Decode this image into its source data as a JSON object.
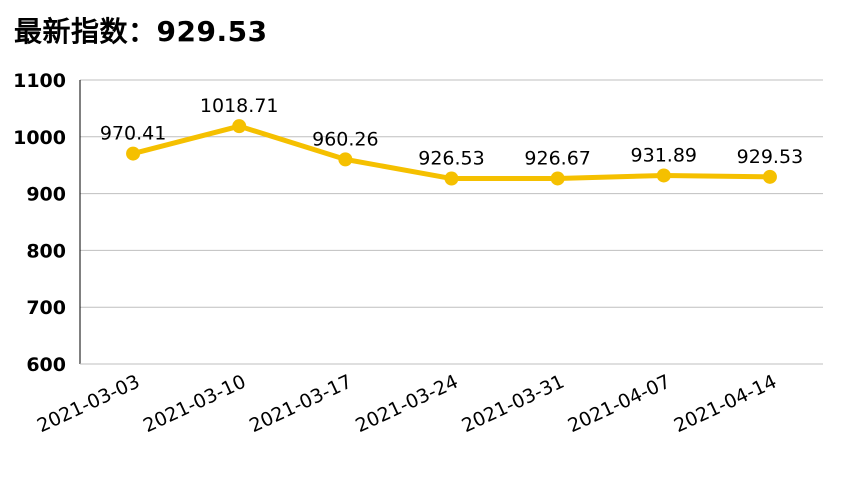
{
  "header": {
    "title_prefix": "最新指数：",
    "latest_value": "929.53"
  },
  "chart_data": {
    "type": "line",
    "title": "",
    "xlabel": "",
    "ylabel": "",
    "categories": [
      "2021-03-03",
      "2021-03-10",
      "2021-03-17",
      "2021-03-24",
      "2021-03-31",
      "2021-04-07",
      "2021-04-14"
    ],
    "series": [
      {
        "values": [
          970.41,
          1018.71,
          960.26,
          926.53,
          926.67,
          931.89,
          929.53
        ]
      }
    ],
    "ylim": [
      600,
      1100
    ],
    "yticks": [
      600,
      700,
      800,
      900,
      1000,
      1100
    ],
    "grid": "horizontal",
    "legend": "none",
    "line_color": "#F5C000",
    "grid_color": "#BFBFBF",
    "axis_color": "#000000"
  }
}
